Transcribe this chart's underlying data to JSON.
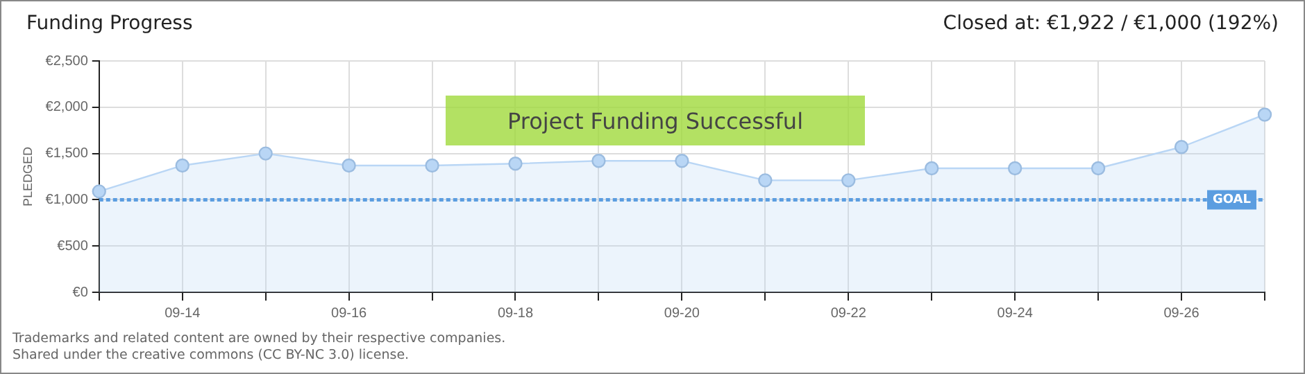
{
  "chart_data": {
    "type": "area",
    "title": "Funding Progress",
    "subtitle": "Closed at:  €1,922 / €1,000 (192%)",
    "ylabel": "PLEDGED",
    "categories": [
      null,
      "09-14",
      null,
      "09-16",
      null,
      "09-18",
      null,
      "09-20",
      null,
      "09-22",
      null,
      "09-24",
      null,
      "09-26",
      null
    ],
    "series": [
      {
        "color": "#b9d6f5",
        "values": [
          1090,
          1370,
          1500,
          1370,
          1370,
          1390,
          1420,
          1420,
          1210,
          1210,
          1340,
          1340,
          1340,
          1570,
          1920
        ]
      }
    ],
    "ylim": [
      0,
      2500
    ],
    "yticks": [
      {
        "value": 0,
        "label": "€0"
      },
      {
        "value": 500,
        "label": "€500"
      },
      {
        "value": 1000,
        "label": "€1,000"
      },
      {
        "value": 1500,
        "label": "€1,500"
      },
      {
        "value": 2000,
        "label": "€2,000"
      },
      {
        "value": 2500,
        "label": "€2,500"
      }
    ],
    "ref_lines": [
      {
        "axis": "y",
        "value": 1000,
        "label": "GOAL",
        "color": "#5b9de0",
        "line_style": "dotted"
      }
    ],
    "annotations": [
      "Project Funding Successful",
      "Trademarks and related content are owned by their respective companies.",
      "Shared under the creative commons (CC BY-NC 3.0) license."
    ],
    "grid": true,
    "legend": false,
    "marker": "circle",
    "line_style": "solid"
  }
}
